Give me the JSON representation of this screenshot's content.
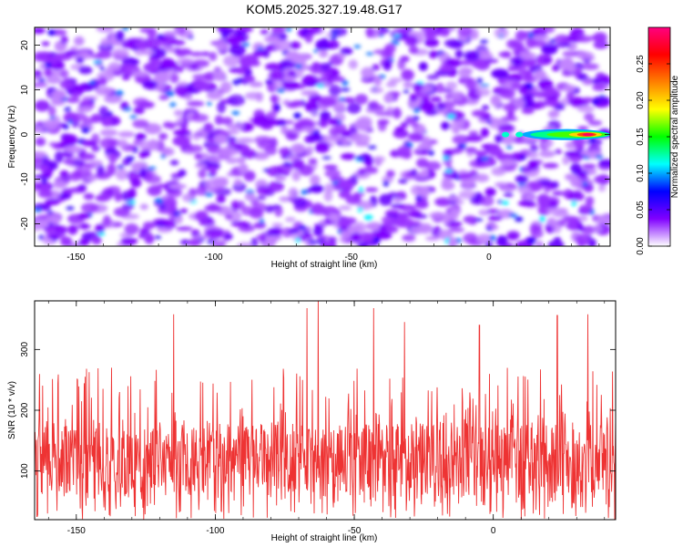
{
  "title": "KOM5.2025.327.19.48.G17",
  "chart_data": [
    {
      "type": "heatmap",
      "xlabel": "Height of straight line (km)",
      "ylabel": "Frequency (Hz)",
      "xlim": [
        -165,
        44
      ],
      "ylim": [
        -25,
        24
      ],
      "xticks": [
        -150,
        -100,
        -50,
        0
      ],
      "xtick_labels": [
        "-150",
        "-100",
        "-50",
        "0"
      ],
      "yticks": [
        -20,
        -10,
        0,
        10,
        20
      ],
      "ytick_labels": [
        "-20",
        "-10",
        "0",
        "10",
        "20"
      ],
      "colorbar": {
        "label": "Normalized spectral amplitude",
        "range": [
          0,
          0.3
        ],
        "ticks": [
          0,
          0.05,
          0.1,
          0.15,
          0.2,
          0.25
        ],
        "tick_labels": [
          "0.00",
          "0.05",
          "0.10",
          "0.15",
          "0.20",
          "0.25"
        ],
        "colors": [
          "#ffffff",
          "#8000ff",
          "#0000ff",
          "#00ffff",
          "#00ff00",
          "#ffff00",
          "#ff8000",
          "#ff0000",
          "#ff0080"
        ]
      },
      "background_level": 0.03,
      "hotspot": {
        "x_from": 15,
        "x_to": 44,
        "y": 0,
        "peak": 0.29,
        "peak_x": 36
      }
    },
    {
      "type": "line",
      "xlabel": "Height of straight line (km)",
      "ylabel": "SNR (10 * v/v)",
      "xlim": [
        -165,
        44
      ],
      "ylim": [
        20,
        380
      ],
      "xticks": [
        -150,
        -100,
        -50,
        0
      ],
      "xtick_labels": [
        "-150",
        "-100",
        "-50",
        "0"
      ],
      "yticks": [
        100,
        200,
        300
      ],
      "ytick_labels": [
        "100",
        "200",
        "300"
      ],
      "color": "#ee3333",
      "baseline": 120,
      "peaks": [
        {
          "x": -115,
          "y": 358
        },
        {
          "x": -67,
          "y": 368
        },
        {
          "x": -63,
          "y": 382
        },
        {
          "x": -43,
          "y": 368
        },
        {
          "x": -32,
          "y": 345
        },
        {
          "x": -5,
          "y": 340
        },
        {
          "x": 23,
          "y": 356
        },
        {
          "x": 34,
          "y": 358
        }
      ]
    }
  ]
}
